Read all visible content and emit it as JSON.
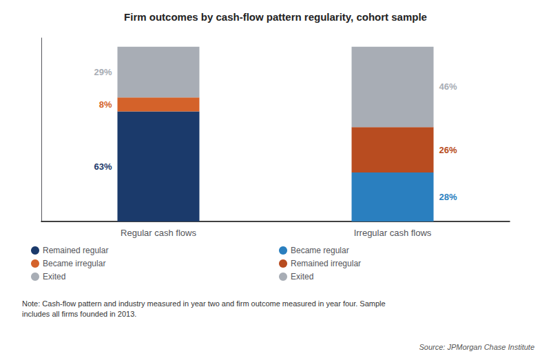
{
  "chart_data": {
    "type": "bar",
    "title": "Firm outcomes by cash-flow pattern regularity, cohort sample",
    "categories": [
      "Regular cash flows",
      "Irregular cash flows"
    ],
    "stacked": true,
    "data_labels": true,
    "tick_labels": "x",
    "grid": false,
    "legend": "bottom",
    "ylim": [
      0,
      105
    ],
    "series": [
      {
        "name": "Remained regular",
        "color": "#1b3a6b",
        "values": [
          63,
          null
        ],
        "value_labels": [
          "63%",
          null
        ]
      },
      {
        "name": "Became irregular",
        "color": "#d4622a",
        "values": [
          8,
          null
        ],
        "value_labels": [
          "8%",
          null
        ]
      },
      {
        "name": "Exited",
        "color": "#a8adb5",
        "values": [
          29,
          null
        ],
        "value_labels": [
          "29%",
          null
        ]
      },
      {
        "name": "Became regular",
        "color": "#2a7fbf",
        "values": [
          null,
          28
        ],
        "value_labels": [
          null,
          "28%"
        ]
      },
      {
        "name": "Remained irregular",
        "color": "#b84c20",
        "values": [
          null,
          26
        ],
        "value_labels": [
          null,
          "26%"
        ]
      },
      {
        "name": "Exited",
        "color": "#a8adb5",
        "values": [
          null,
          46
        ],
        "value_labels": [
          null,
          "46%"
        ]
      }
    ],
    "note": "Note: Cash-flow pattern and industry measured in year two and firm outcome measured in year four. Sample\nincludes all firms founded in 2013.",
    "source": "Source: JPMorgan Chase Institute"
  }
}
